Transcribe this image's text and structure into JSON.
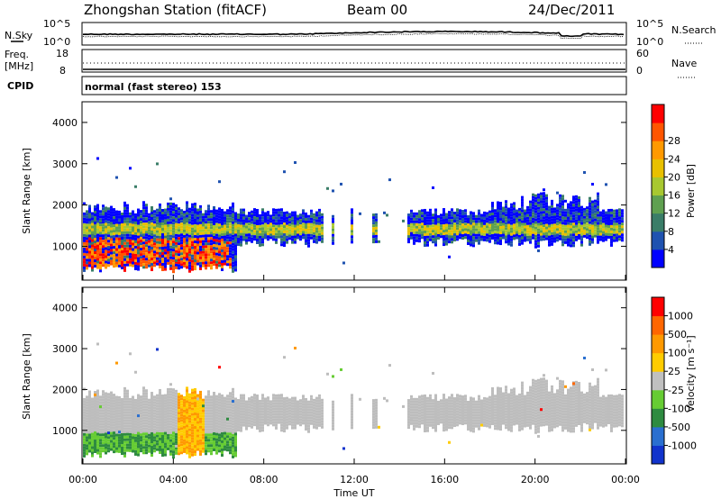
{
  "header": {
    "station": "Zhongshan Station (fitACF)",
    "beam": "Beam 00",
    "date": "24/Dec/2011"
  },
  "summary": {
    "nsky_label": "N.Sky",
    "nsearch_label": "N.Search",
    "nsky_tick_top": "10^5",
    "nsky_tick_bottom": "10^0",
    "nsearch_tick_top": "10^5",
    "nsearch_tick_bottom": "10^0",
    "freq_label_1": "Freq.",
    "freq_label_2": "[MHz]",
    "freq_tick_top": "18",
    "freq_tick_bottom": "8",
    "nave_label": "Nave",
    "nave_tick_top": "60",
    "nave_tick_bottom": "0",
    "cpid_label": "CPID",
    "cpid_text": "normal (fast stereo) 153"
  },
  "chart_data": [
    {
      "type": "heatmap",
      "parameter": "Power",
      "ylabel": "Slant Range [km]",
      "xlabel": "",
      "ylim": [
        180,
        4500
      ],
      "x_ticks": [
        "00:00",
        "04:00",
        "08:00",
        "12:00",
        "16:00",
        "20:00",
        "00:00"
      ],
      "y_ticks": [
        1000,
        2000,
        3000,
        4000
      ],
      "colorbar_label": "Power [dB]",
      "colorbar_ticks": [
        4,
        8,
        12,
        16,
        20,
        24,
        28
      ],
      "colorbar_range": [
        0,
        30
      ],
      "colors": [
        "#0000ff",
        "#1f52b0",
        "#3a7d68",
        "#5fa050",
        "#a8c830",
        "#e8c000",
        "#ff9900",
        "#ff5500",
        "#ff0000"
      ]
    },
    {
      "type": "heatmap",
      "parameter": "Velocity",
      "ylabel": "Slant Range [km]",
      "xlabel": "Time UT",
      "ylim": [
        180,
        4500
      ],
      "x_ticks": [
        "00:00",
        "04:00",
        "08:00",
        "12:00",
        "16:00",
        "20:00",
        "00:00"
      ],
      "y_ticks": [
        1000,
        2000,
        3000,
        4000
      ],
      "colorbar_label": "Velocity [m s⁻¹]",
      "colorbar_ticks": [
        "1000",
        "500",
        "100",
        "25",
        "-25",
        "-100",
        "-500",
        "-1000"
      ],
      "ground_scatter_color": "#bdbdbd",
      "colors": [
        "#1133cc",
        "#2a6fd0",
        "#2e8b40",
        "#66cc33",
        "#c0c0c0",
        "#ffcc00",
        "#ff9900",
        "#ff6600",
        "#ff0000"
      ]
    }
  ]
}
